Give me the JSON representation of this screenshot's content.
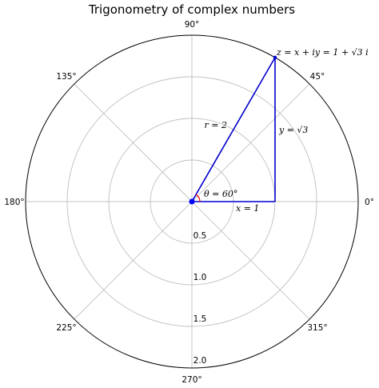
{
  "chart_data": {
    "type": "polar",
    "title": "Trigonometry of complex numbers",
    "r_max": 2.0,
    "r_ticks": [
      {
        "value": 0.5,
        "label": "0.5"
      },
      {
        "value": 1.0,
        "label": "1.0"
      },
      {
        "value": 1.5,
        "label": "1.5"
      },
      {
        "value": 2.0,
        "label": "2.0"
      }
    ],
    "r_label_angle_deg": 270,
    "theta_ticks": [
      {
        "deg": 0,
        "label": "0°"
      },
      {
        "deg": 45,
        "label": "45°"
      },
      {
        "deg": 90,
        "label": "90°"
      },
      {
        "deg": 135,
        "label": "135°"
      },
      {
        "deg": 180,
        "label": "180°"
      },
      {
        "deg": 225,
        "label": "225°"
      },
      {
        "deg": 270,
        "label": "270°"
      },
      {
        "deg": 315,
        "label": "315°"
      }
    ],
    "grid": true,
    "point_z": {
      "x": 1,
      "y": 1.732,
      "r": 2,
      "theta_deg": 60
    },
    "annotations": {
      "z_label": "z = x + iy = 1 + √3 i",
      "r_label": "r = 2",
      "y_label": "y = √3",
      "x_label": "x = 1",
      "theta_label": "θ = 60°"
    },
    "colors": {
      "lines": "#0000cc",
      "theta_arc": "#ff0000",
      "origin_dot": "#0000ff",
      "grid": "#c0c0c0",
      "frame": "#000000"
    }
  }
}
